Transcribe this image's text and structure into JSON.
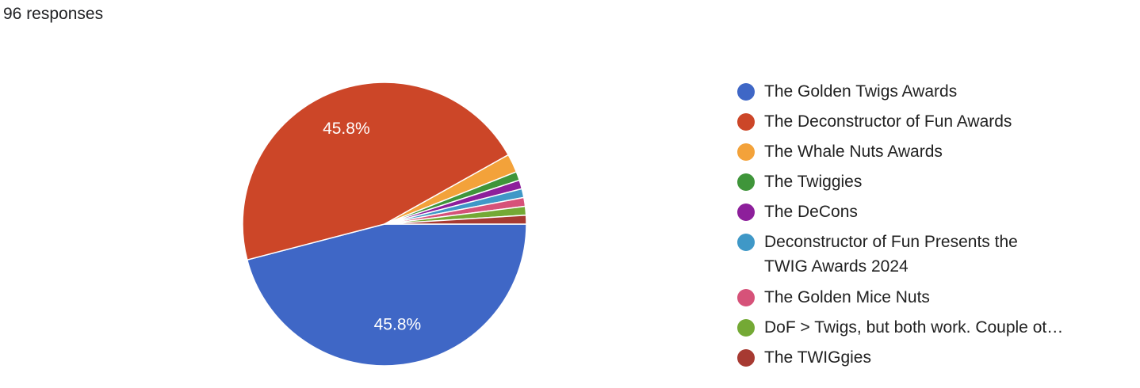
{
  "header": "96 responses",
  "chart_data": {
    "type": "pie",
    "categories": [
      "The Golden Twigs Awards",
      "The Deconstructor of Fun Awards",
      "The Whale Nuts Awards",
      "The Twiggies",
      "The DeCons",
      "Deconstructor of Fun Presents the TWIG Awards 2024",
      "The Golden Mice Nuts",
      "DoF > Twigs, but both work. Couple ot…",
      "The TWIGgies"
    ],
    "values": [
      45.8,
      45.8,
      2.1,
      1,
      1,
      1,
      1,
      1,
      1
    ],
    "value_labels": [
      "45.8%",
      "45.8%",
      null,
      null,
      null,
      null,
      null,
      null,
      null
    ],
    "colors": [
      "#3f67c6",
      "#cc4628",
      "#f3a23a",
      "#3f953a",
      "#8d1f9b",
      "#3f98c7",
      "#d65279",
      "#74a935",
      "#a73a32"
    ],
    "legend": "right"
  }
}
